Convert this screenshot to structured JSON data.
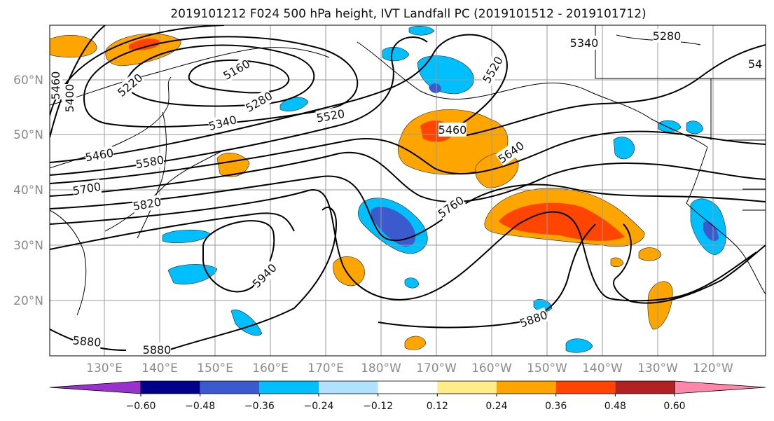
{
  "title": "2019101212 F024 500 hPa height, IVT Landfall PC (2019101512 - 2019101712)",
  "latitude_labels": [
    "60°N",
    "50°N",
    "40°N",
    "30°N",
    "20°N"
  ],
  "longitude_labels": [
    "130°E",
    "140°E",
    "150°E",
    "160°E",
    "170°E",
    "180°W",
    "170°W",
    "160°W",
    "150°W",
    "140°W",
    "130°W",
    "120°W"
  ],
  "contour_labels": [
    {
      "value": "5220",
      "angle": -40
    },
    {
      "value": "5160",
      "angle": -30
    },
    {
      "value": "5280",
      "angle": -30
    },
    {
      "value": "5520",
      "angle": -60
    },
    {
      "value": "5460",
      "angle": -90
    },
    {
      "value": "5400",
      "angle": -90
    },
    {
      "value": "5340",
      "angle": -15
    },
    {
      "value": "5520",
      "angle": -10
    },
    {
      "value": "5460",
      "angle": 0
    },
    {
      "value": "5460",
      "angle": -10
    },
    {
      "value": "5580",
      "angle": -10
    },
    {
      "value": "5640",
      "angle": -35
    },
    {
      "value": "5700",
      "angle": -10
    },
    {
      "value": "5760",
      "angle": -35
    },
    {
      "value": "5820",
      "angle": -10
    },
    {
      "value": "5940",
      "angle": -45
    },
    {
      "value": "5880",
      "angle": -20
    },
    {
      "value": "5880",
      "angle": 5
    },
    {
      "value": "5880",
      "angle": 0
    },
    {
      "value": "5280",
      "angle": 0
    },
    {
      "value": "5340",
      "angle": 0
    },
    {
      "value": "54",
      "angle": 0
    }
  ],
  "colorbar": {
    "colors": [
      "#9932cc",
      "#00008b",
      "#3a5acd",
      "#00bfff",
      "#b0e2ff",
      "#ffffff",
      "#ffec8b",
      "#ffa500",
      "#ff4500",
      "#b22222",
      "#ff88aa"
    ],
    "tick_labels": [
      "−0.60",
      "−0.48",
      "−0.36",
      "−0.24",
      "−0.12",
      "0.12",
      "0.24",
      "0.36",
      "0.48",
      "0.60"
    ]
  },
  "map_data": {
    "type": "contour_map",
    "projection": "plate-carree",
    "lon_range": [
      "120°E",
      "115°W"
    ],
    "lat_range": [
      "10°N",
      "70°N"
    ],
    "fields": [
      "500 hPa height (contours)",
      "IVT Landfall PC (shaded)"
    ]
  }
}
